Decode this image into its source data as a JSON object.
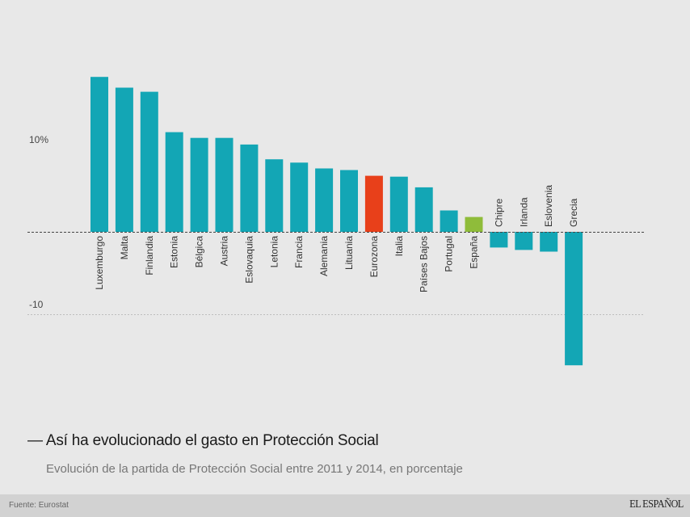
{
  "chart_data": {
    "type": "bar",
    "title": "Así ha evolucionado el gasto en Protección Social",
    "title_prefix": "—",
    "subtitle": "Evolución de la partida de Protección Social entre 2011 y 2014, en porcentaje",
    "xlabel": "",
    "ylabel": "",
    "ylim": [
      -20,
      20
    ],
    "yticks": [
      {
        "value": 10,
        "label": "10%",
        "gridline": false
      },
      {
        "value": -10,
        "label": "-10",
        "gridline": true
      }
    ],
    "grid": true,
    "legend": "none",
    "categories": [
      "Luxemburgo",
      "Malta",
      "Finlandia",
      "Estonia",
      "Bélgica",
      "Austria",
      "Eslovaquia",
      "Letonia",
      "Francia",
      "Alemania",
      "Lituania",
      "Eurozona",
      "Italia",
      "Países Bajos",
      "Portugal",
      "España",
      "Chipre",
      "Irlanda",
      "Eslovenia",
      "Grecia"
    ],
    "values": [
      18.8,
      17.5,
      17.0,
      12.1,
      11.4,
      11.4,
      10.6,
      8.8,
      8.4,
      7.7,
      7.5,
      6.8,
      6.7,
      5.4,
      2.6,
      1.8,
      -1.9,
      -2.2,
      -2.4,
      -16.2
    ],
    "colors": {
      "default": "#13a6b5",
      "Eurozona": "#e8401a",
      "España": "#8fbc3a"
    }
  },
  "footer": {
    "source": "Fuente: Eurostat",
    "brand": "EL ESPAÑOL"
  }
}
